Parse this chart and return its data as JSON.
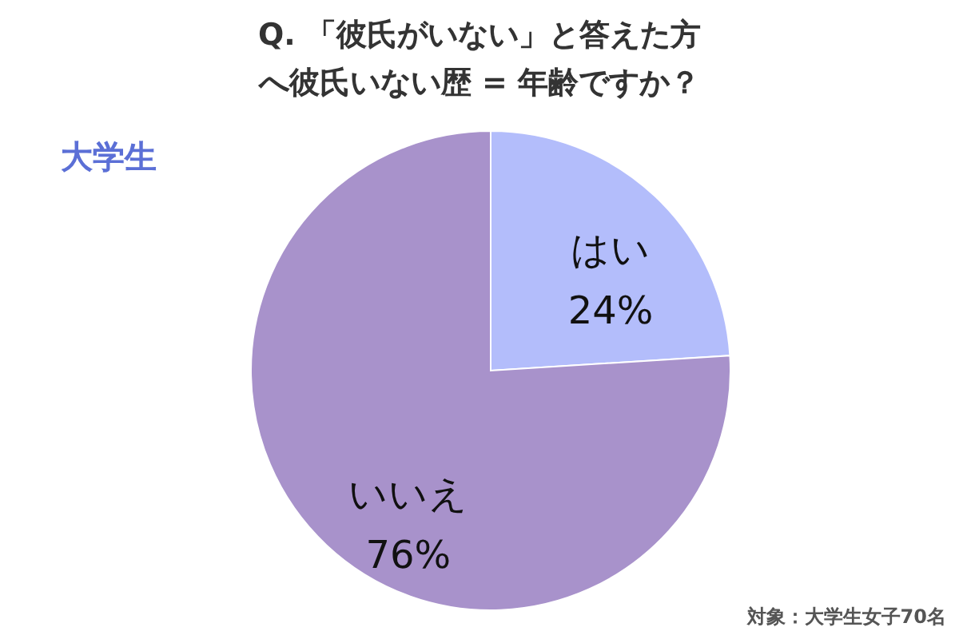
{
  "chart_data": {
    "type": "pie",
    "title": "Q. 「彼氏がいない」と答えた方へ彼氏いない歴 = 年齢ですか？",
    "subtitle": "大学生",
    "categories": [
      "はい",
      "いいえ"
    ],
    "values": [
      24,
      76
    ],
    "value_labels": [
      "24%",
      "76%"
    ],
    "colors": [
      "#b3bdfb",
      "#a892cb"
    ],
    "annotations": [
      "対象：大学生女子70名"
    ]
  }
}
